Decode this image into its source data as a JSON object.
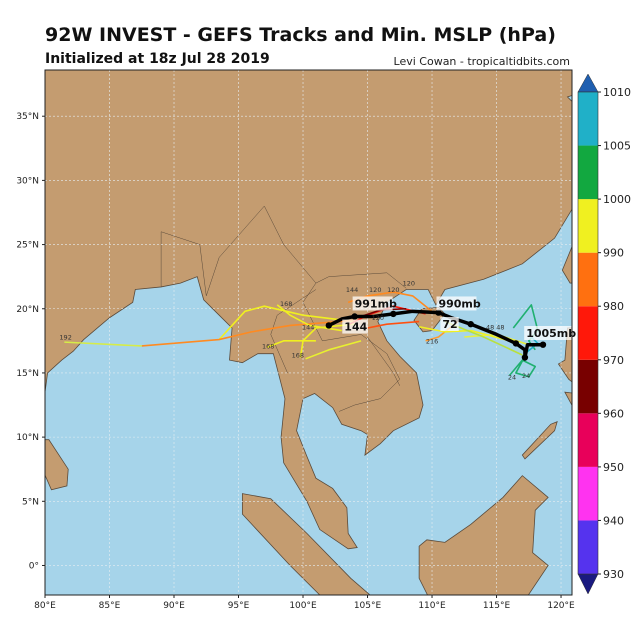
{
  "header": {
    "title": "92W INVEST - GEFS Tracks and Min. MSLP (hPa)",
    "subtitle": "Initialized at 18z Jul 28 2019",
    "credit": "Levi Cowan - tropicaltidbits.com"
  },
  "map": {
    "lon_range": [
      80,
      120.85
    ],
    "lat_range": [
      -2.3,
      38.6
    ],
    "lon_ticks": [
      {
        "v": 80,
        "label": "80°E"
      },
      {
        "v": 85,
        "label": "85°E"
      },
      {
        "v": 90,
        "label": "90°E"
      },
      {
        "v": 95,
        "label": "95°E"
      },
      {
        "v": 100,
        "label": "100°E"
      },
      {
        "v": 105,
        "label": "105°E"
      },
      {
        "v": 110,
        "label": "110°E"
      },
      {
        "v": 115,
        "label": "115°E"
      },
      {
        "v": 120,
        "label": "120°E"
      }
    ],
    "lat_ticks": [
      {
        "v": 0,
        "label": "0°"
      },
      {
        "v": 5,
        "label": "5°N"
      },
      {
        "v": 10,
        "label": "10°N"
      },
      {
        "v": 15,
        "label": "15°N"
      },
      {
        "v": 20,
        "label": "20°N"
      },
      {
        "v": 25,
        "label": "25°N"
      },
      {
        "v": 30,
        "label": "30°N"
      },
      {
        "v": 35,
        "label": "35°N"
      }
    ],
    "colors": {
      "land": "#c49c70",
      "ocean": "#a6d4ea",
      "border": "#5a4a3a",
      "grid": "#e8eef2"
    }
  },
  "colorbar": {
    "levels": [
      "930",
      "940",
      "950",
      "960",
      "970",
      "980",
      "990",
      "1000",
      "1005",
      "1010"
    ],
    "colors": [
      "#5533ee",
      "#ff33f0",
      "#e8005a",
      "#780000",
      "#ff180a",
      "#ff7010",
      "#f0f020",
      "#12a840",
      "#20b0c8"
    ],
    "over_color": "#1f5fb0",
    "under_color": "#1a1a80"
  },
  "ensemble_tracks": [
    {
      "color": "#f0f020",
      "points": [
        [
          104,
          19
        ],
        [
          100,
          19.5
        ],
        [
          97,
          20.2
        ],
        [
          95.5,
          19.8
        ],
        [
          93.5,
          17.6
        ]
      ]
    },
    {
      "color": "#ff8a20",
      "points": [
        [
          104,
          19.1
        ],
        [
          99,
          18.7
        ],
        [
          96,
          18.2
        ],
        [
          93.5,
          17.6
        ],
        [
          87.5,
          17.1
        ]
      ]
    },
    {
      "color": "#d6ec48",
      "points": [
        [
          87.5,
          17.1
        ],
        [
          81.5,
          17.4
        ]
      ]
    },
    {
      "color": "#f0f020",
      "points": [
        [
          104,
          18.8
        ],
        [
          101,
          18.5
        ],
        [
          100,
          17.5
        ],
        [
          99.8,
          16.2
        ]
      ]
    },
    {
      "color": "#f0f020",
      "points": [
        [
          103,
          18.3
        ],
        [
          100.5,
          18.7
        ],
        [
          99,
          19.5
        ],
        [
          98,
          20.3
        ]
      ]
    },
    {
      "color": "#f0f020",
      "points": [
        [
          101,
          17.5
        ],
        [
          98.5,
          17.5
        ],
        [
          97.2,
          17
        ]
      ]
    },
    {
      "color": "#e8f030",
      "points": [
        [
          104.5,
          17.5
        ],
        [
          102,
          16.8
        ],
        [
          100.2,
          16.1
        ]
      ]
    },
    {
      "color": "#ff8a20",
      "points": [
        [
          110,
          19.8
        ],
        [
          108.5,
          21
        ],
        [
          107,
          21.3
        ],
        [
          105,
          21
        ],
        [
          103.5,
          20.5
        ]
      ]
    },
    {
      "color": "#ff180a",
      "points": [
        [
          109.5,
          19.6
        ],
        [
          107,
          20.2
        ],
        [
          105,
          19.5
        ],
        [
          103.6,
          18.8
        ]
      ]
    },
    {
      "color": "#780000",
      "points": [
        [
          108,
          20
        ],
        [
          106,
          19.9
        ],
        [
          104.5,
          19.4
        ]
      ]
    },
    {
      "color": "#ff5010",
      "points": [
        [
          109,
          19
        ],
        [
          106.5,
          18.8
        ],
        [
          105,
          18.5
        ]
      ]
    },
    {
      "color": "#ff9a30",
      "points": [
        [
          112,
          19
        ],
        [
          110.5,
          17.8
        ],
        [
          109.5,
          17.5
        ]
      ]
    },
    {
      "color": "#f0f020",
      "points": [
        [
          116,
          17.5
        ],
        [
          113,
          18.3
        ],
        [
          111,
          18.2
        ],
        [
          109,
          18.6
        ]
      ]
    },
    {
      "color": "#e8f040",
      "points": [
        [
          117.5,
          17.2
        ],
        [
          115,
          18
        ],
        [
          112.5,
          17.8
        ]
      ]
    },
    {
      "color": "#b8e040",
      "points": [
        [
          117,
          16.4
        ],
        [
          114,
          17.8
        ],
        [
          111,
          19
        ]
      ]
    },
    {
      "color": "#20b070",
      "points": [
        [
          116,
          14.8
        ],
        [
          117,
          16
        ],
        [
          118,
          15.5
        ],
        [
          117.5,
          14.7
        ],
        [
          116.5,
          15
        ],
        [
          117.2,
          16.3
        ]
      ]
    },
    {
      "color": "#20b070",
      "points": [
        [
          116.3,
          18.5
        ],
        [
          117.7,
          20.3
        ],
        [
          118.2,
          18.3
        ],
        [
          117.5,
          17.5
        ],
        [
          118,
          16.8
        ]
      ]
    },
    {
      "color": "#20b0c8",
      "points": [
        [
          117.2,
          16.5
        ],
        [
          118.2,
          17.3
        ],
        [
          117.5,
          18
        ]
      ]
    }
  ],
  "mean_track": {
    "color": "#000000",
    "points": [
      [
        118.6,
        17.2
      ],
      [
        117.4,
        17.2
      ],
      [
        117.2,
        16.2
      ],
      [
        117.2,
        16.8
      ],
      [
        116.5,
        17.3
      ],
      [
        115,
        18
      ],
      [
        113,
        18.8
      ],
      [
        111.5,
        19.3
      ],
      [
        110.5,
        19.7
      ],
      [
        108.5,
        19.8
      ],
      [
        107,
        19.6
      ],
      [
        105.5,
        19.4
      ],
      [
        104,
        19.4
      ],
      [
        103,
        19.2
      ],
      [
        102,
        18.7
      ]
    ],
    "labels": [
      {
        "text": "1005mb",
        "lon": 117.3,
        "lat": 17.8
      },
      {
        "text": "990mb",
        "lon": 110.5,
        "lat": 20.1
      },
      {
        "text": "991mb",
        "lon": 104,
        "lat": 20.1
      },
      {
        "text": "72",
        "lon": 110.8,
        "lat": 18.5
      },
      {
        "text": "144",
        "lon": 103.2,
        "lat": 18.3
      }
    ]
  },
  "hour_labels": [
    {
      "text": "192",
      "lon": 81.6,
      "lat": 17.6
    },
    {
      "text": "168",
      "lon": 98.7,
      "lat": 20.2
    },
    {
      "text": "168",
      "lon": 97.3,
      "lat": 16.9
    },
    {
      "text": "168",
      "lon": 99.6,
      "lat": 16.2
    },
    {
      "text": "144",
      "lon": 100.4,
      "lat": 18.4
    },
    {
      "text": "144",
      "lon": 103.8,
      "lat": 21.3
    },
    {
      "text": "120",
      "lon": 105.6,
      "lat": 21.3
    },
    {
      "text": "120",
      "lon": 107,
      "lat": 21.3
    },
    {
      "text": "120",
      "lon": 108.2,
      "lat": 21.8
    },
    {
      "text": "120",
      "lon": 105.8,
      "lat": 19.9
    },
    {
      "text": "216",
      "lon": 110,
      "lat": 17.3
    },
    {
      "text": "48",
      "lon": 114.5,
      "lat": 18.4
    },
    {
      "text": "48",
      "lon": 115.3,
      "lat": 18.4
    },
    {
      "text": "24",
      "lon": 116.2,
      "lat": 14.5
    },
    {
      "text": "24",
      "lon": 117.3,
      "lat": 14.6
    }
  ]
}
